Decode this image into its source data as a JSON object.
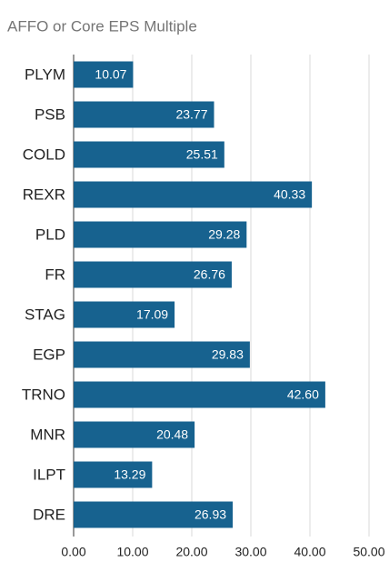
{
  "chart_data": {
    "type": "bar",
    "orientation": "horizontal",
    "title": "AFFO or Core EPS Multiple",
    "categories": [
      "PLYM",
      "PSB",
      "COLD",
      "REXR",
      "PLD",
      "FR",
      "STAG",
      "EGP",
      "TRNO",
      "MNR",
      "ILPT",
      "DRE"
    ],
    "values": [
      10.07,
      23.77,
      25.51,
      40.33,
      29.28,
      26.76,
      17.09,
      29.83,
      42.6,
      20.48,
      13.29,
      26.93
    ],
    "value_labels": [
      "10.07",
      "23.77",
      "25.51",
      "40.33",
      "29.28",
      "26.76",
      "17.09",
      "29.83",
      "42.60",
      "20.48",
      "13.29",
      "26.93"
    ],
    "color": "#17628f",
    "xlim": [
      0,
      50
    ],
    "xticks": [
      {
        "value": 0,
        "label": "0.00"
      },
      {
        "value": 10,
        "label": "10.00"
      },
      {
        "value": 20,
        "label": "20.00"
      },
      {
        "value": 30,
        "label": "30.00"
      },
      {
        "value": 40,
        "label": "40.00"
      },
      {
        "value": 50,
        "label": "50.00"
      }
    ],
    "grid": true
  }
}
